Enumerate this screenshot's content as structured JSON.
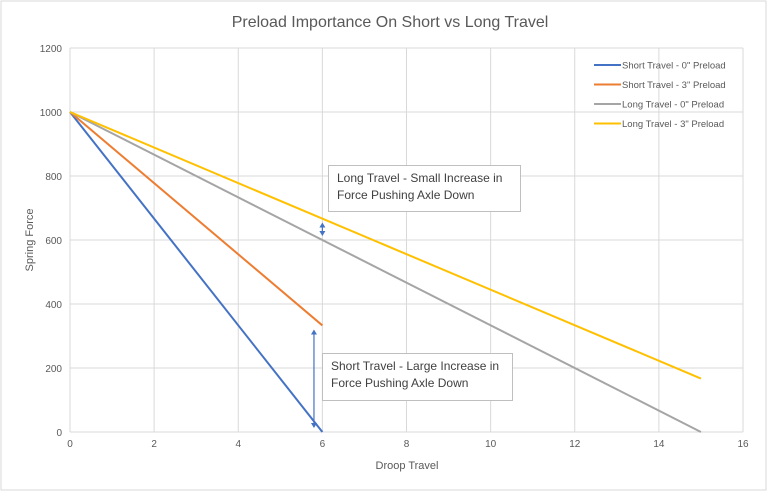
{
  "chart_data": {
    "type": "line",
    "title": "Preload Importance On Short vs Long Travel",
    "xlabel": "Droop Travel",
    "ylabel": "Spring Force",
    "xlim": [
      0,
      16
    ],
    "ylim": [
      0,
      1200
    ],
    "xticks": [
      0,
      2,
      4,
      6,
      8,
      10,
      12,
      14,
      16
    ],
    "yticks": [
      0,
      200,
      400,
      600,
      800,
      1000,
      1200
    ],
    "grid": true,
    "legend_position": "top-right",
    "series": [
      {
        "name": "Short Travel - 0\" Preload",
        "color": "#4472C4",
        "x": [
          0,
          6
        ],
        "y": [
          1000,
          0
        ]
      },
      {
        "name": "Short Travel - 3\" Preload",
        "color": "#ED7D31",
        "x": [
          0,
          6
        ],
        "y": [
          1000,
          333
        ]
      },
      {
        "name": "Long Travel - 0\" Preload",
        "color": "#A5A5A5",
        "x": [
          0,
          15
        ],
        "y": [
          1000,
          0
        ]
      },
      {
        "name": "Long Travel - 3\" Preload",
        "color": "#FFC000",
        "x": [
          0,
          15
        ],
        "y": [
          1000,
          167
        ]
      }
    ],
    "annotations": [
      {
        "text_line1": "Long Travel - Small Increase in",
        "text_line2": "Force Pushing Axle Down",
        "arrow_x": 6,
        "arrow_y": [
          600,
          667
        ]
      },
      {
        "text_line1": "Short Travel - Large Increase in",
        "text_line2": "Force Pushing Axle Down",
        "arrow_x": 5.8,
        "arrow_y": [
          0,
          333
        ]
      }
    ]
  }
}
